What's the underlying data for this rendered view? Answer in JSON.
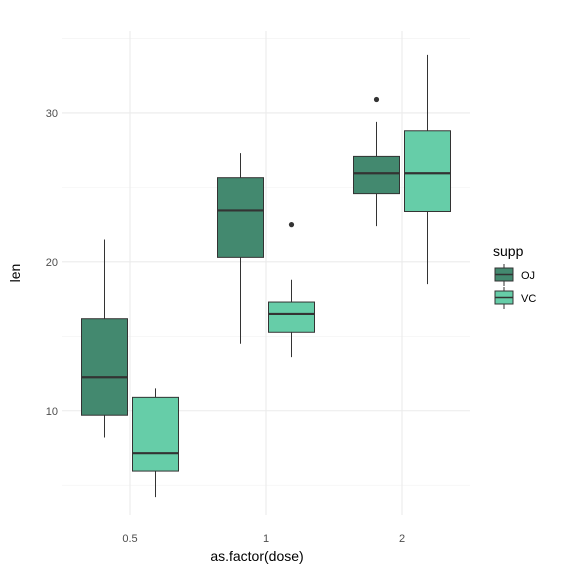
{
  "chart_data": {
    "type": "boxplot",
    "title": "",
    "xlabel": "as.factor(dose)",
    "ylabel": "len",
    "categories": [
      "0.5",
      "1",
      "2"
    ],
    "ylim": [
      3.0,
      35.5
    ],
    "yticks": [
      10,
      20,
      30
    ],
    "grid": true,
    "legend": {
      "title": "supp",
      "position": "right"
    },
    "series": [
      {
        "name": "OJ",
        "color": "#43896f",
        "boxes": [
          {
            "category": "0.5",
            "min": 8.2,
            "q1": 9.7,
            "median": 12.25,
            "q3": 16.18,
            "max": 21.5,
            "outliers": []
          },
          {
            "category": "1",
            "min": 14.5,
            "q1": 20.3,
            "median": 23.45,
            "q3": 25.65,
            "max": 27.3,
            "outliers": []
          },
          {
            "category": "2",
            "min": 22.4,
            "q1": 24.58,
            "median": 25.95,
            "q3": 27.08,
            "max": 29.4,
            "outliers": [
              30.9
            ]
          }
        ]
      },
      {
        "name": "VC",
        "color": "#66cda8",
        "boxes": [
          {
            "category": "0.5",
            "min": 4.2,
            "q1": 5.95,
            "median": 7.15,
            "q3": 10.9,
            "max": 11.5,
            "outliers": []
          },
          {
            "category": "1",
            "min": 13.6,
            "q1": 15.27,
            "median": 16.5,
            "q3": 17.3,
            "max": 18.8,
            "outliers": [
              22.5
            ]
          },
          {
            "category": "2",
            "min": 18.5,
            "q1": 23.38,
            "median": 25.95,
            "q3": 28.8,
            "max": 33.9,
            "outliers": []
          }
        ]
      }
    ]
  }
}
